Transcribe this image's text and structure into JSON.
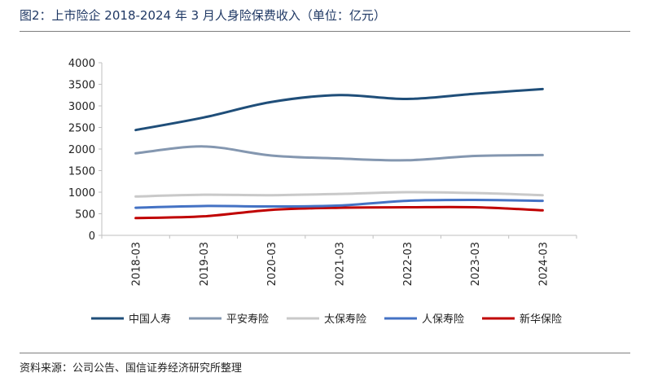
{
  "header": {
    "title": "图2：上市险企 2018-2024 年 3 月人身险保费收入（单位：亿元）"
  },
  "footer": {
    "source": "资料来源：公司公告、国信证券经济研究所整理"
  },
  "chart_data": {
    "type": "line",
    "title": "",
    "xlabel": "",
    "ylabel": "",
    "categories": [
      "2018-03",
      "2019-03",
      "2020-03",
      "2021-03",
      "2022-03",
      "2023-03",
      "2024-03"
    ],
    "ylim": [
      0,
      4000
    ],
    "yticks": [
      0,
      500,
      1000,
      1500,
      2000,
      2500,
      3000,
      3500,
      4000
    ],
    "grid": false,
    "legend_position": "bottom",
    "series": [
      {
        "name": "中国人寿",
        "color": "#1f4e79",
        "values": [
          2440,
          2730,
          3090,
          3250,
          3160,
          3280,
          3390
        ]
      },
      {
        "name": "平安寿险",
        "color": "#8497b0",
        "values": [
          1900,
          2060,
          1850,
          1780,
          1740,
          1840,
          1860
        ]
      },
      {
        "name": "太保寿险",
        "color": "#c9c9c9",
        "values": [
          900,
          940,
          930,
          960,
          1000,
          980,
          930
        ]
      },
      {
        "name": "人保寿险",
        "color": "#4472c4",
        "values": [
          640,
          680,
          670,
          690,
          800,
          820,
          800
        ]
      },
      {
        "name": "新华保险",
        "color": "#c00000",
        "values": [
          400,
          440,
          590,
          640,
          650,
          650,
          580
        ]
      }
    ]
  }
}
